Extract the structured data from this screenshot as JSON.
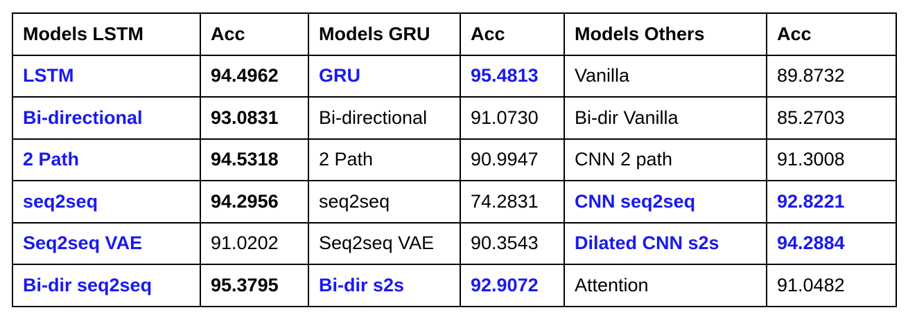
{
  "table": {
    "headers": [
      "Models LSTM",
      "Acc",
      "Models GRU",
      "Acc",
      "Models Others",
      "Acc"
    ],
    "rows": [
      [
        {
          "text": "LSTM",
          "style": "blue"
        },
        {
          "text": "94.4962",
          "style": "bold"
        },
        {
          "text": "GRU",
          "style": "blue"
        },
        {
          "text": "95.4813",
          "style": "blue"
        },
        {
          "text": "Vanilla",
          "style": "normal"
        },
        {
          "text": "89.8732",
          "style": "normal"
        }
      ],
      [
        {
          "text": "Bi-directional",
          "style": "blue"
        },
        {
          "text": "93.0831",
          "style": "bold"
        },
        {
          "text": "Bi-directional",
          "style": "normal"
        },
        {
          "text": "91.0730",
          "style": "normal"
        },
        {
          "text": "Bi-dir Vanilla",
          "style": "normal"
        },
        {
          "text": "85.2703",
          "style": "normal"
        }
      ],
      [
        {
          "text": "2 Path",
          "style": "blue"
        },
        {
          "text": "94.5318",
          "style": "bold"
        },
        {
          "text": "2 Path",
          "style": "normal"
        },
        {
          "text": "90.9947",
          "style": "normal"
        },
        {
          "text": "CNN 2 path",
          "style": "normal"
        },
        {
          "text": "91.3008",
          "style": "normal"
        }
      ],
      [
        {
          "text": "seq2seq",
          "style": "blue"
        },
        {
          "text": "94.2956",
          "style": "bold"
        },
        {
          "text": "seq2seq",
          "style": "normal"
        },
        {
          "text": "74.2831",
          "style": "normal"
        },
        {
          "text": "CNN seq2seq",
          "style": "blue"
        },
        {
          "text": "92.8221",
          "style": "blue"
        }
      ],
      [
        {
          "text": "Seq2seq VAE",
          "style": "blue"
        },
        {
          "text": "91.0202",
          "style": "normal"
        },
        {
          "text": "Seq2seq VAE",
          "style": "normal"
        },
        {
          "text": "90.3543",
          "style": "normal"
        },
        {
          "text": "Dilated CNN s2s",
          "style": "blue"
        },
        {
          "text": "94.2884",
          "style": "blue"
        }
      ],
      [
        {
          "text": "Bi-dir seq2seq",
          "style": "blue"
        },
        {
          "text": "95.3795",
          "style": "bold"
        },
        {
          "text": "Bi-dir s2s",
          "style": "blue"
        },
        {
          "text": "92.9072",
          "style": "blue"
        },
        {
          "text": "Attention",
          "style": "normal"
        },
        {
          "text": "91.0482",
          "style": "normal"
        }
      ]
    ]
  },
  "colors": {
    "highlight_blue": "#1a1aee",
    "text": "#000000",
    "border": "#000000",
    "background": "#ffffff"
  }
}
